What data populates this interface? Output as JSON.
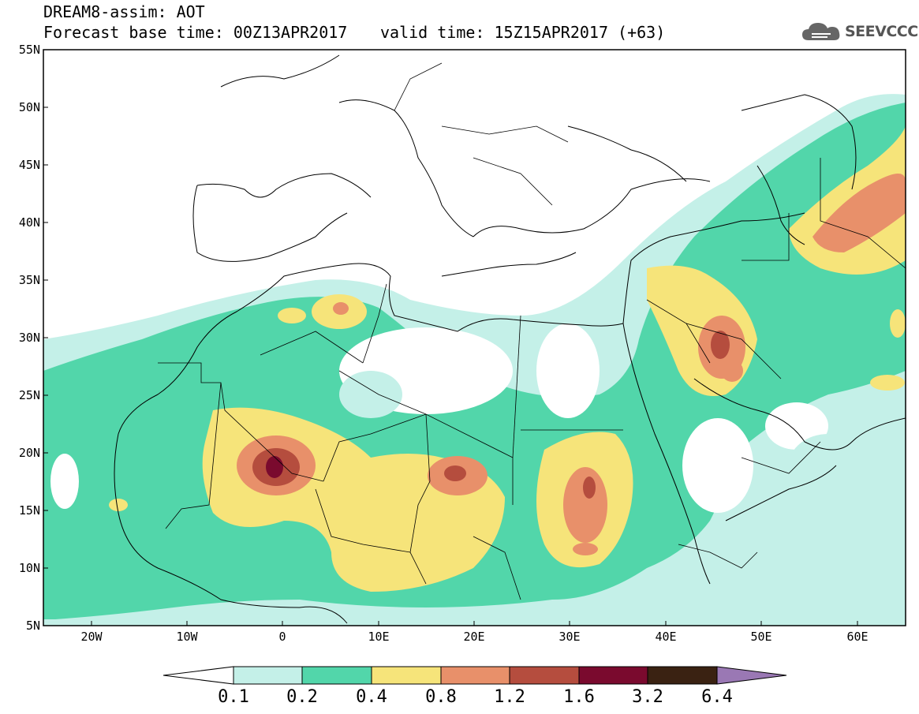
{
  "header": {
    "line1": "DREAM8-assim: AOT",
    "line2_left": "Forecast base time: 00Z13APR2017",
    "line2_right": "valid time: 15Z15APR2017 (+63)",
    "logo_text": "SEEVCCC",
    "logo_icon": "cloud-icon"
  },
  "map": {
    "lon_range": [
      -25,
      65
    ],
    "lat_range": [
      5,
      55
    ],
    "lat_labels": [
      "55N",
      "50N",
      "45N",
      "40N",
      "35N",
      "30N",
      "25N",
      "20N",
      "15N",
      "10N",
      "5N"
    ],
    "lon_labels": [
      "20W",
      "10W",
      "0",
      "10E",
      "20E",
      "30E",
      "40E",
      "50E",
      "60E"
    ]
  },
  "legend": {
    "labels": [
      "0.1",
      "0.2",
      "0.4",
      "0.8",
      "1.2",
      "1.6",
      "3.2",
      "6.4"
    ],
    "colors": {
      "lt01": "#ffffff",
      "b01_02": "#c4f0e8",
      "b02_04": "#52d6aa",
      "b04_08": "#f6e47a",
      "b08_12": "#e8906a",
      "b12_16": "#b54d3e",
      "b16_32": "#7a0a2e",
      "b32_64": "#3a2212",
      "gt64": "#9a78b4"
    }
  }
}
